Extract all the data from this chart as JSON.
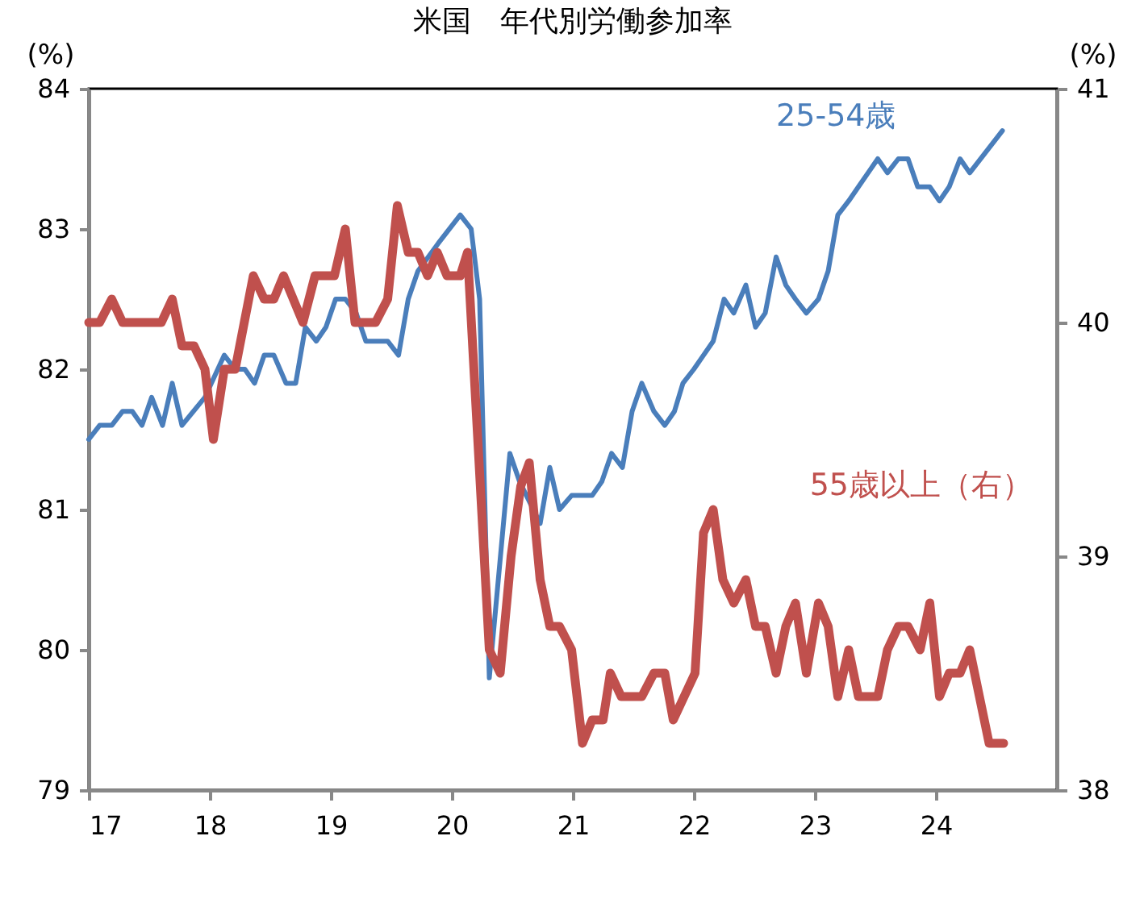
{
  "chart_data": {
    "type": "line",
    "title": "米国　年代別労働参加率",
    "ylabel": "(%)",
    "y2label": "(%)",
    "xlim": [
      17,
      25
    ],
    "xticks": [
      17,
      18,
      19,
      20,
      21,
      22,
      23,
      24
    ],
    "ylim": [
      79,
      84
    ],
    "yticks": [
      79,
      80,
      81,
      82,
      83,
      84
    ],
    "y2lim": [
      38,
      41
    ],
    "y2ticks": [
      38,
      39,
      40,
      41
    ],
    "grid": false,
    "series": [
      {
        "name": "25-54歳",
        "color": "#4a7ebb",
        "x": [
          17.0,
          17.09,
          17.19,
          17.28,
          17.36,
          17.44,
          17.52,
          17.61,
          17.69,
          17.77,
          17.96,
          18.12,
          18.21,
          18.29,
          18.37,
          18.45,
          18.53,
          18.63,
          18.71,
          18.79,
          18.88,
          18.96,
          19.04,
          19.12,
          19.21,
          19.29,
          19.47,
          19.56,
          19.64,
          19.72,
          19.89,
          20.07,
          20.16,
          20.23,
          20.31,
          20.48,
          20.56,
          20.73,
          20.81,
          20.89,
          20.99,
          21.08,
          21.16,
          21.24,
          21.32,
          21.41,
          21.49,
          21.57,
          21.67,
          21.76,
          21.84,
          21.91,
          22.0,
          22.08,
          22.16,
          22.25,
          22.33,
          22.43,
          22.51,
          22.59,
          22.68,
          22.76,
          22.84,
          22.93,
          23.03,
          23.11,
          23.19,
          23.28,
          23.36,
          23.44,
          23.52,
          23.6,
          23.69,
          23.77,
          23.85,
          23.95,
          24.03,
          24.11,
          24.2,
          24.28,
          24.55
        ],
        "values": [
          81.5,
          81.6,
          81.6,
          81.7,
          81.7,
          81.6,
          81.8,
          81.6,
          81.9,
          81.6,
          81.8,
          82.1,
          82.0,
          82.0,
          81.9,
          82.1,
          82.1,
          81.9,
          81.9,
          82.3,
          82.2,
          82.3,
          82.5,
          82.5,
          82.4,
          82.2,
          82.2,
          82.1,
          82.5,
          82.7,
          82.9,
          83.1,
          83.0,
          82.5,
          79.8,
          81.4,
          81.2,
          80.9,
          81.3,
          81.0,
          81.1,
          81.1,
          81.1,
          81.2,
          81.4,
          81.3,
          81.7,
          81.9,
          81.7,
          81.6,
          81.7,
          81.9,
          82.0,
          82.1,
          82.2,
          82.5,
          82.4,
          82.6,
          82.3,
          82.4,
          82.8,
          82.6,
          82.5,
          82.4,
          82.5,
          82.7,
          83.1,
          83.2,
          83.3,
          83.4,
          83.5,
          83.4,
          83.5,
          83.5,
          83.3,
          83.3,
          83.2,
          83.3,
          83.5,
          83.4,
          83.7
        ]
      },
      {
        "name": "55歳以上（右）",
        "color": "#c0504d",
        "axis": "y2",
        "x": [
          17.0,
          17.09,
          17.19,
          17.28,
          17.6,
          17.69,
          17.77,
          17.87,
          17.96,
          18.03,
          18.12,
          18.21,
          18.36,
          18.45,
          18.53,
          18.61,
          18.77,
          18.87,
          19.03,
          19.12,
          19.2,
          19.37,
          19.47,
          19.55,
          19.64,
          19.72,
          19.8,
          19.88,
          19.96,
          20.07,
          20.13,
          20.31,
          20.4,
          20.49,
          20.57,
          20.64,
          20.73,
          20.81,
          20.89,
          20.99,
          21.08,
          21.16,
          21.25,
          21.31,
          21.4,
          21.57,
          21.67,
          21.76,
          21.83,
          22.01,
          22.08,
          22.16,
          22.24,
          22.33,
          22.43,
          22.51,
          22.59,
          22.68,
          22.76,
          22.84,
          22.93,
          23.03,
          23.11,
          23.19,
          23.28,
          23.36,
          23.52,
          23.6,
          23.69,
          23.77,
          23.87,
          23.95,
          24.03,
          24.11,
          24.2,
          24.28,
          24.44,
          24.56
        ],
        "values": [
          40.0,
          40.0,
          40.1,
          40.0,
          40.0,
          40.1,
          39.9,
          39.9,
          39.8,
          39.5,
          39.8,
          39.8,
          40.2,
          40.1,
          40.1,
          40.2,
          40.0,
          40.2,
          40.2,
          40.4,
          40.0,
          40.0,
          40.1,
          40.5,
          40.3,
          40.3,
          40.2,
          40.3,
          40.2,
          40.2,
          40.3,
          38.6,
          38.5,
          39.0,
          39.3,
          39.4,
          38.9,
          38.7,
          38.7,
          38.6,
          38.2,
          38.3,
          38.3,
          38.5,
          38.4,
          38.4,
          38.5,
          38.5,
          38.3,
          38.5,
          39.1,
          39.2,
          38.9,
          38.8,
          38.9,
          38.7,
          38.7,
          38.5,
          38.7,
          38.8,
          38.5,
          38.8,
          38.7,
          38.4,
          38.6,
          38.4,
          38.4,
          38.6,
          38.7,
          38.7,
          38.6,
          38.8,
          38.4,
          38.5,
          38.5,
          38.6,
          38.2,
          38.2
        ]
      }
    ]
  }
}
